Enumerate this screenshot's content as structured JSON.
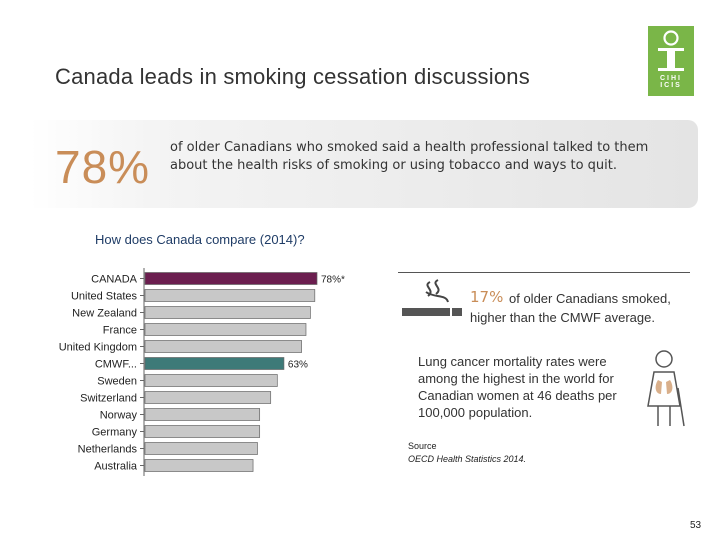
{
  "title": "Canada leads in smoking cessation discussions",
  "logo": {
    "text": "CIHI ICIS"
  },
  "headline": {
    "percent": "78%",
    "text": "of older Canadians who smoked said a health professional talked to them about the health risks of smoking or using  tobacco and ways to quit."
  },
  "question": "How does Canada compare (2014)?",
  "chart_data": {
    "type": "bar",
    "orientation": "horizontal",
    "title": "How does Canada compare (2014)?",
    "categories": [
      "CANADA",
      "United States",
      "New Zealand",
      "France",
      "United Kingdom",
      "CMWF...",
      "Sweden",
      "Switzerland",
      "Norway",
      "Germany",
      "Netherlands",
      "Australia"
    ],
    "values": [
      78,
      77,
      75,
      73,
      71,
      63,
      60,
      57,
      52,
      52,
      51,
      49
    ],
    "highlight": {
      "CANADA": "#6b1e4f",
      "CMWF...": "#3d7a78"
    },
    "default_color": "#c8c8c8",
    "data_labels": {
      "CANADA": "78%*",
      "CMWF...": "63%"
    },
    "xlim": [
      0,
      100
    ],
    "grid": false,
    "xlabel": "",
    "ylabel": ""
  },
  "stat1": {
    "percent": "17%",
    "text": "of older Canadians smoked,",
    "text2": "higher than the CMWF average."
  },
  "stat2": {
    "text": "Lung cancer mortality rates were among the highest in the world for Canadian women at 46 deaths per 100,000 population."
  },
  "source": {
    "label": "Source",
    "text": "OECD Health Statistics 2014."
  },
  "page_number": "53",
  "colors": {
    "accent": "#c98d58",
    "brand_green": "#7ab648",
    "question": "#1f3c66"
  }
}
